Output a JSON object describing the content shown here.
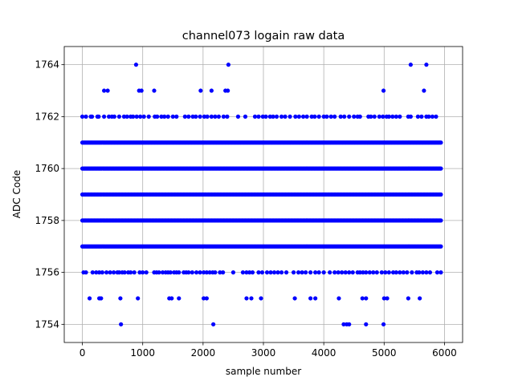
{
  "chart_data": {
    "type": "scatter",
    "title": "channel073 logain raw data",
    "xlabel": "sample number",
    "ylabel": "ADC Code",
    "xlim": [
      -300,
      6300
    ],
    "ylim": [
      1753.3,
      1764.7
    ],
    "xticks": [
      0,
      1000,
      2000,
      3000,
      4000,
      5000,
      6000
    ],
    "yticks": [
      1754,
      1756,
      1758,
      1760,
      1762,
      1764
    ],
    "grid": true,
    "marker": "circle",
    "color": "#0000ff",
    "series": [
      {
        "name": "",
        "x_range": [
          0,
          5940
        ],
        "dense_levels": [
          1757,
          1758,
          1759,
          1760,
          1761
        ],
        "sparse_levels": [
          {
            "y": 1756,
            "x": [
              20,
              60,
              170,
              230,
              280,
              330,
              400,
              460,
              520,
              580,
              610,
              660,
              700,
              760,
              800,
              860,
              950,
              1000,
              1060,
              1190,
              1230,
              1270,
              1330,
              1380,
              1420,
              1460,
              1520,
              1560,
              1600,
              1680,
              1720,
              1760,
              1820,
              1890,
              1950,
              2010,
              2060,
              2110,
              2160,
              2200,
              2280,
              2330,
              2500,
              2660,
              2720,
              2770,
              2820,
              2920,
              2980,
              3060,
              3120,
              3180,
              3240,
              3300,
              3380,
              3500,
              3580,
              3640,
              3700,
              3780,
              3860,
              3920,
              4000,
              4100,
              4180,
              4240,
              4300,
              4360,
              4420,
              4480,
              4560,
              4600,
              4650,
              4700,
              4760,
              4820,
              4880,
              4960,
              5020,
              5080,
              5150,
              5200,
              5260,
              5320,
              5380,
              5460,
              5540,
              5580,
              5640,
              5700,
              5760,
              5880,
              5940
            ]
          },
          {
            "y": 1755,
            "x": [
              120,
              280,
              310,
              630,
              920,
              1440,
              1480,
              1600,
              2010,
              2060,
              2720,
              2800,
              2960,
              3520,
              3780,
              3860,
              4250,
              4640,
              4700,
              5000,
              5050,
              5400,
              5590
            ]
          },
          {
            "y": 1754,
            "x": [
              640,
              2170,
              4330,
              4380,
              4420,
              4700,
              4990
            ]
          },
          {
            "y": 1762,
            "x": [
              0,
              60,
              140,
              160,
              250,
              270,
              360,
              440,
              490,
              530,
              610,
              690,
              740,
              800,
              840,
              900,
              960,
              1020,
              1100,
              1200,
              1240,
              1310,
              1360,
              1420,
              1500,
              1560,
              1700,
              1760,
              1830,
              1880,
              1950,
              2020,
              2070,
              2140,
              2200,
              2260,
              2340,
              2400,
              2580,
              2700,
              2860,
              2920,
              2990,
              3040,
              3110,
              3160,
              3220,
              3300,
              3360,
              3440,
              3530,
              3590,
              3660,
              3720,
              3800,
              3850,
              3920,
              4000,
              4050,
              4120,
              4180,
              4280,
              4340,
              4420,
              4500,
              4560,
              4600,
              4740,
              4780,
              4840,
              4920,
              4980,
              5040,
              5080,
              5140,
              5200,
              5260,
              5400,
              5440,
              5560,
              5620,
              5700,
              5740,
              5800,
              5860
            ]
          },
          {
            "y": 1763,
            "x": [
              360,
              420,
              940,
              980,
              1190,
              1960,
              2140,
              2370,
              2410,
              4990,
              5660
            ]
          },
          {
            "y": 1764,
            "x": [
              890,
              2420,
              5440,
              5700
            ]
          }
        ]
      }
    ]
  }
}
